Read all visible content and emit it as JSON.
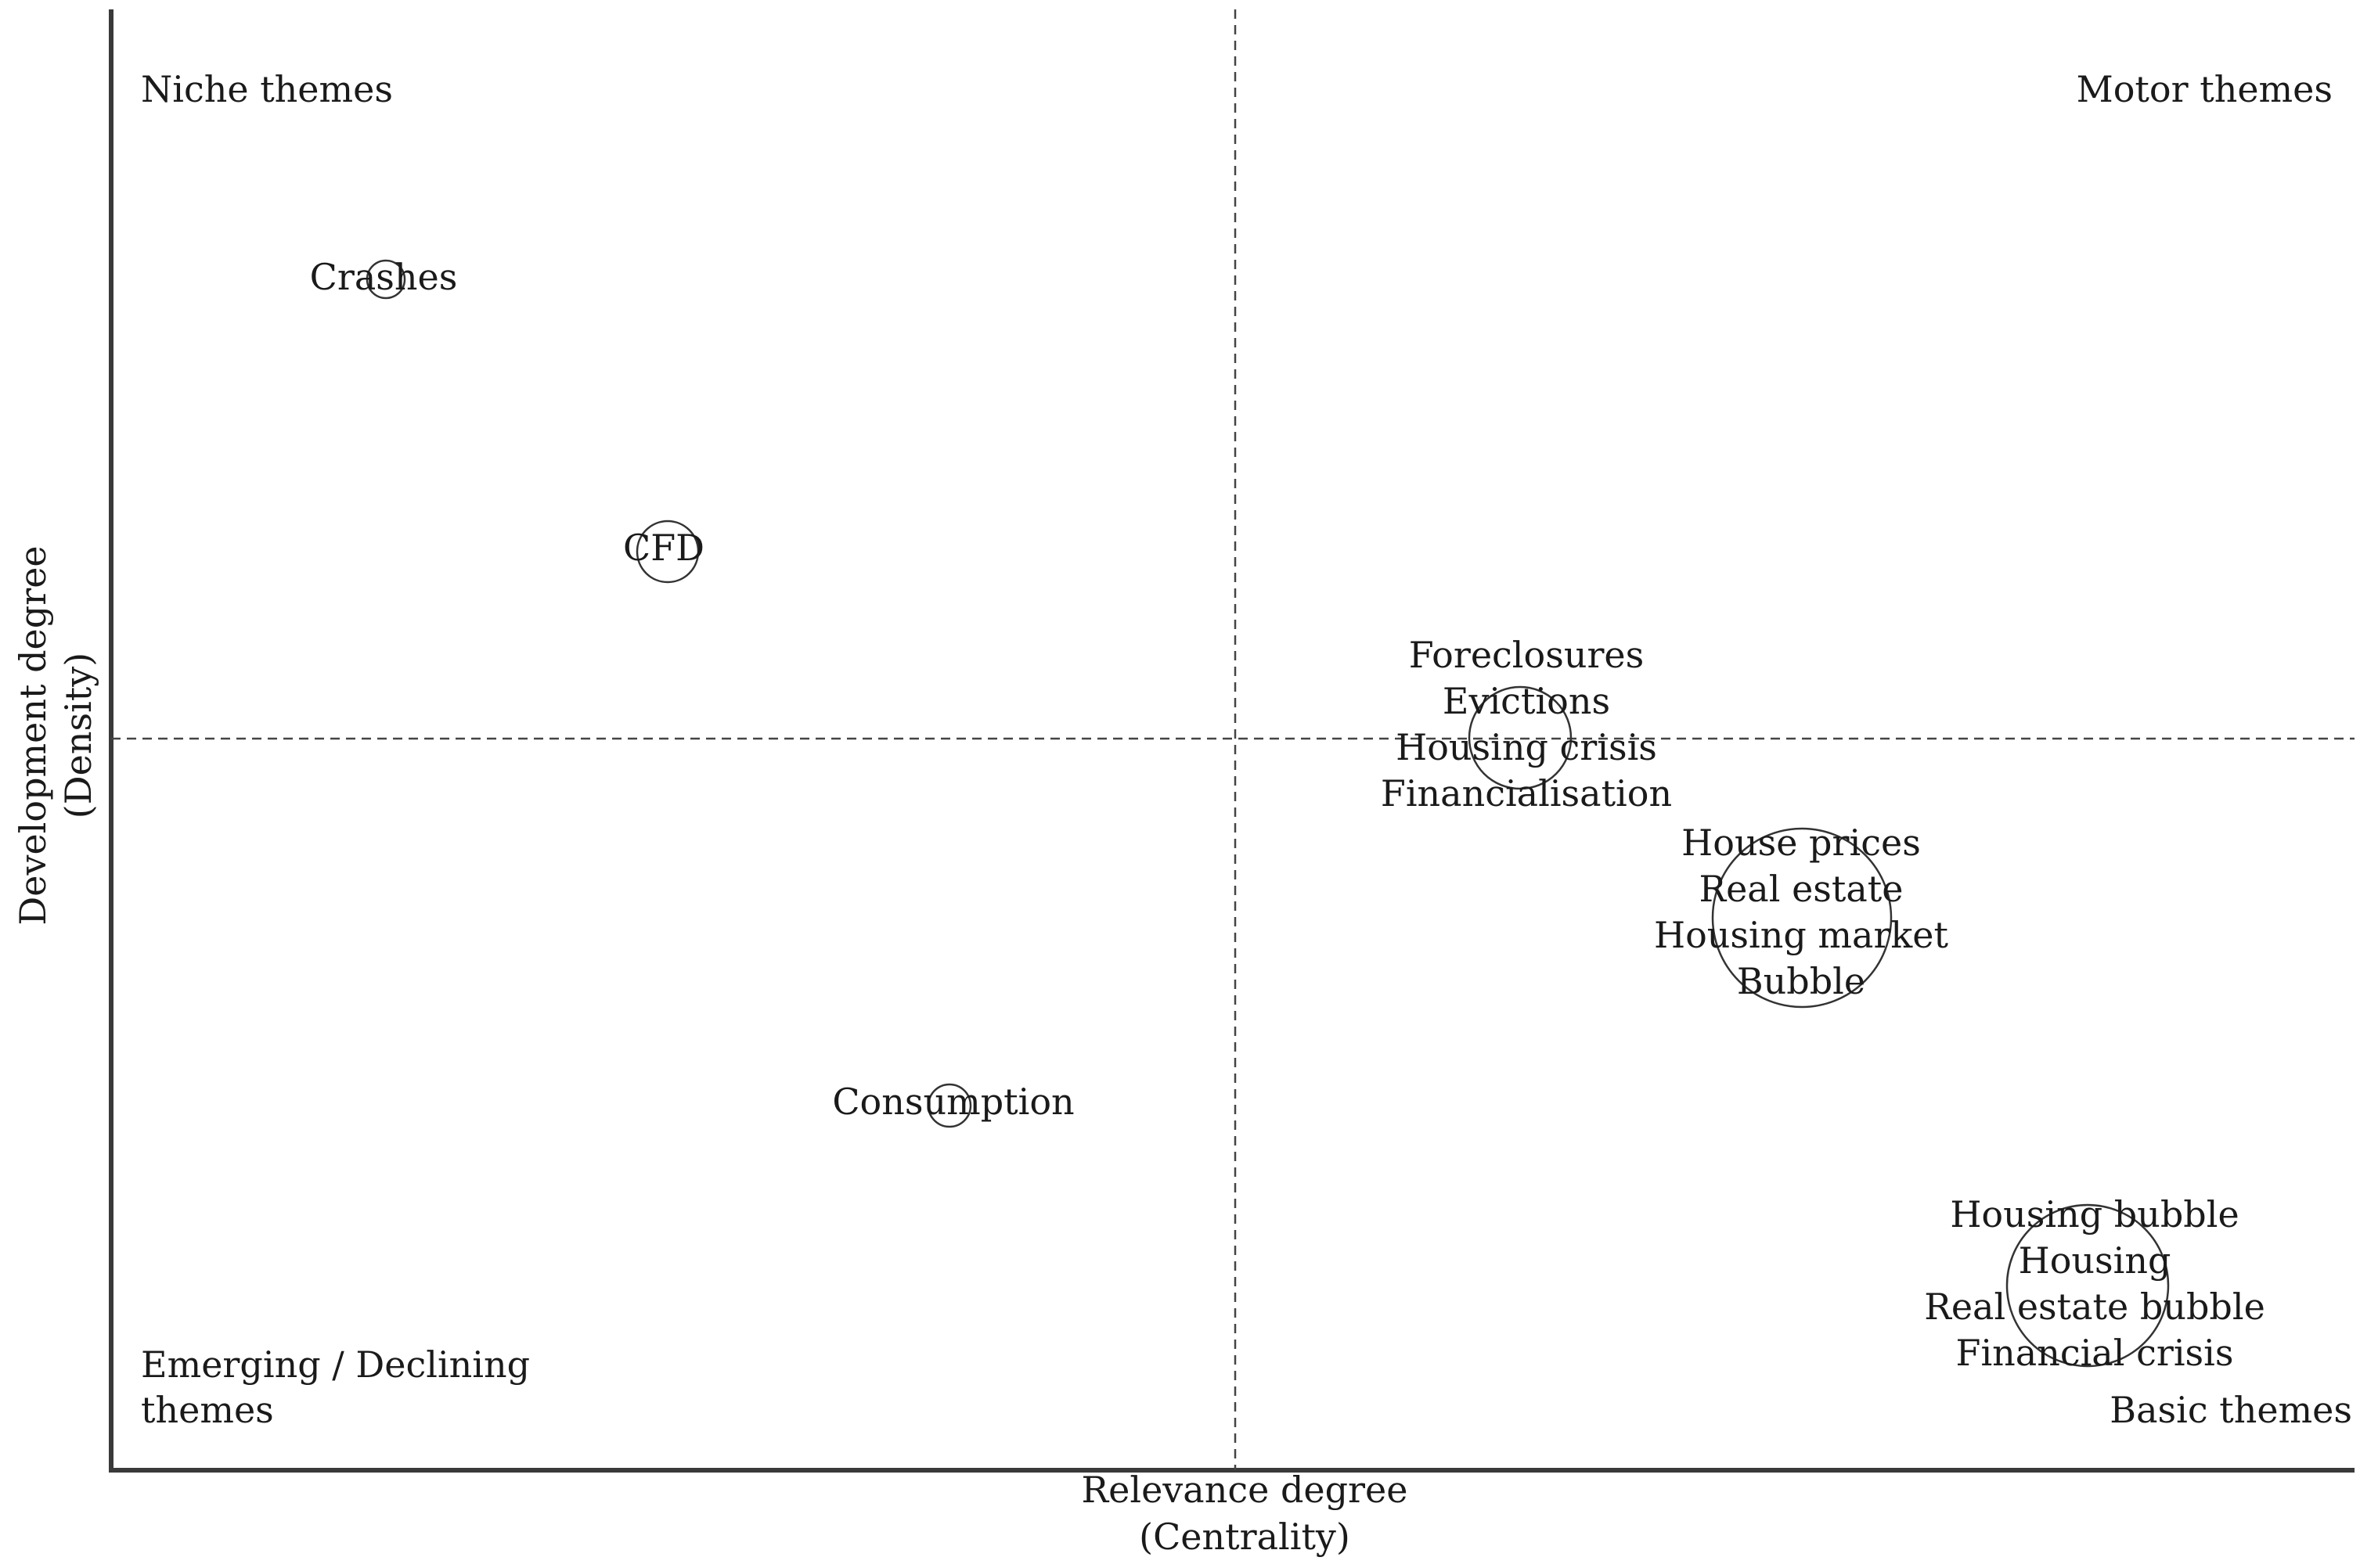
{
  "axes": {
    "x_label_line1": "Relevance degree",
    "x_label_line2": "(Centrality)",
    "y_label_line1": "Development degree",
    "y_label_line2": "(Density)"
  },
  "quadrants": {
    "top_left": "Niche themes",
    "top_right": "Motor themes",
    "bottom_left_line1": "Emerging / Declining",
    "bottom_left_line2": "themes",
    "bottom_right": "Basic themes"
  },
  "clusters": [
    {
      "id": "crashes",
      "terms": [
        "Crashes"
      ]
    },
    {
      "id": "cfd",
      "terms": [
        "CFD"
      ]
    },
    {
      "id": "consumption",
      "terms": [
        "Consumption"
      ]
    },
    {
      "id": "foreclosures",
      "terms": [
        "Foreclosures",
        "Evictions",
        "Housing crisis",
        "Financialisation"
      ]
    },
    {
      "id": "house-prices",
      "terms": [
        "House prices",
        "Real estate",
        "Housing market",
        "Bubble"
      ]
    },
    {
      "id": "housing-bubble",
      "terms": [
        "Housing bubble",
        "Housing",
        "Real estate bubble",
        "Financial crisis"
      ]
    }
  ]
}
